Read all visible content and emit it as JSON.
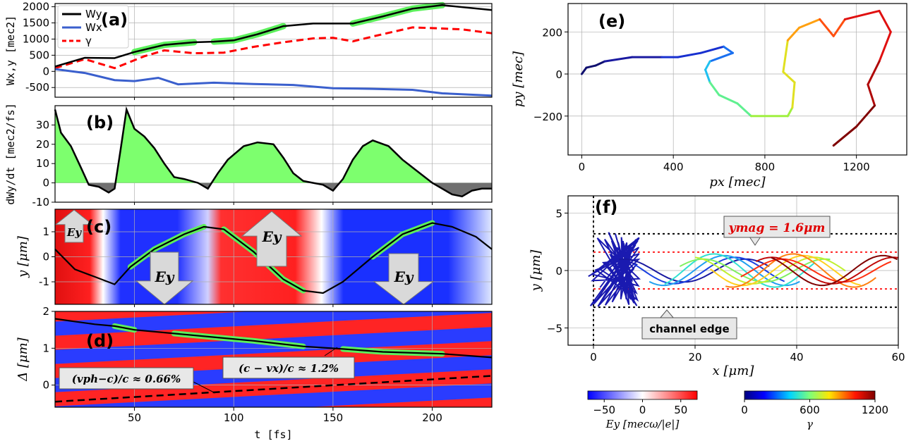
{
  "chart_data": [
    {
      "id": "a",
      "type": "line",
      "panel_label": "(a)",
      "ylabel": "Wx,y [mec2]",
      "ylim": [
        -800,
        2100
      ],
      "yticks": [
        "2000",
        "1500",
        "1000",
        "500",
        "0",
        "-500"
      ],
      "legend": [
        "Wy",
        "Wx",
        "γ"
      ],
      "series": [
        {
          "name": "Wy",
          "color": "#000000",
          "points": [
            [
              10,
              150
            ],
            [
              25,
              420
            ],
            [
              40,
              410
            ],
            [
              50,
              600
            ],
            [
              65,
              820
            ],
            [
              80,
              900
            ],
            [
              90,
              920
            ],
            [
              100,
              960
            ],
            [
              112,
              1150
            ],
            [
              125,
              1400
            ],
            [
              140,
              1480
            ],
            [
              160,
              1480
            ],
            [
              175,
              1700
            ],
            [
              190,
              1940
            ],
            [
              205,
              2050
            ],
            [
              230,
              1900
            ]
          ]
        },
        {
          "name": "Wx",
          "color": "#3a5fcd",
          "points": [
            [
              10,
              70
            ],
            [
              25,
              -50
            ],
            [
              40,
              -270
            ],
            [
              50,
              -300
            ],
            [
              62,
              -200
            ],
            [
              72,
              -400
            ],
            [
              90,
              -350
            ],
            [
              110,
              -390
            ],
            [
              130,
              -420
            ],
            [
              150,
              -520
            ],
            [
              170,
              -540
            ],
            [
              190,
              -570
            ],
            [
              205,
              -680
            ],
            [
              230,
              -750
            ]
          ]
        },
        {
          "name": "γ",
          "color": "#ff0000",
          "points": [
            [
              10,
              100
            ],
            [
              25,
              380
            ],
            [
              40,
              100
            ],
            [
              55,
              470
            ],
            [
              65,
              650
            ],
            [
              80,
              560
            ],
            [
              95,
              580
            ],
            [
              110,
              760
            ],
            [
              125,
              900
            ],
            [
              140,
              1020
            ],
            [
              150,
              1040
            ],
            [
              160,
              930
            ],
            [
              170,
              1080
            ],
            [
              190,
              1360
            ],
            [
              200,
              1340
            ],
            [
              215,
              1300
            ],
            [
              230,
              1180
            ]
          ]
        }
      ]
    },
    {
      "id": "b",
      "type": "area",
      "panel_label": "(b)",
      "ylabel": "dWy/dt [mec2/fs]",
      "ylim": [
        -10,
        40
      ],
      "yticks": [
        "30",
        "20",
        "10",
        "0",
        "-10"
      ],
      "series": [
        {
          "name": "dWy/dt",
          "points": [
            [
              10,
              38
            ],
            [
              13,
              26
            ],
            [
              18,
              19
            ],
            [
              23,
              8
            ],
            [
              27,
              -1
            ],
            [
              32,
              -2
            ],
            [
              37,
              -5
            ],
            [
              40,
              -3
            ],
            [
              43,
              17
            ],
            [
              46,
              38
            ],
            [
              50,
              28
            ],
            [
              55,
              24
            ],
            [
              60,
              18
            ],
            [
              65,
              10
            ],
            [
              70,
              3
            ],
            [
              75,
              2
            ],
            [
              82,
              0
            ],
            [
              87,
              -3
            ],
            [
              92,
              5
            ],
            [
              97,
              12
            ],
            [
              105,
              19
            ],
            [
              112,
              21
            ],
            [
              120,
              20
            ],
            [
              125,
              13
            ],
            [
              130,
              5
            ],
            [
              135,
              1
            ],
            [
              140,
              0
            ],
            [
              145,
              -1
            ],
            [
              150,
              -4
            ],
            [
              155,
              2
            ],
            [
              160,
              12
            ],
            [
              165,
              19
            ],
            [
              170,
              22
            ],
            [
              178,
              19
            ],
            [
              185,
              12
            ],
            [
              195,
              4
            ],
            [
              200,
              0
            ],
            [
              205,
              -3
            ],
            [
              210,
              -6
            ],
            [
              215,
              -7
            ],
            [
              220,
              -4
            ],
            [
              225,
              -3
            ],
            [
              230,
              -3
            ]
          ]
        }
      ]
    },
    {
      "id": "c",
      "type": "line",
      "panel_label": "(c)",
      "ylabel": "y [μm]",
      "ylim": [
        -1.9,
        1.9
      ],
      "yticks": [
        "1",
        "0",
        "-1"
      ],
      "series": [
        {
          "name": "y",
          "points": [
            [
              10,
              0.3
            ],
            [
              20,
              -0.5
            ],
            [
              30,
              -0.8
            ],
            [
              40,
              -1.1
            ],
            [
              48,
              -0.4
            ],
            [
              60,
              0.3
            ],
            [
              75,
              0.9
            ],
            [
              85,
              1.2
            ],
            [
              95,
              1.1
            ],
            [
              110,
              0.2
            ],
            [
              125,
              -0.9
            ],
            [
              135,
              -1.35
            ],
            [
              145,
              -1.45
            ],
            [
              155,
              -1.0
            ],
            [
              170,
              0.0
            ],
            [
              185,
              0.9
            ],
            [
              200,
              1.35
            ],
            [
              210,
              1.2
            ],
            [
              222,
              0.8
            ],
            [
              230,
              0.3
            ]
          ]
        }
      ],
      "annotations": [
        "Ey",
        "Ey",
        "Ey",
        "Ey"
      ]
    },
    {
      "id": "d",
      "type": "line",
      "panel_label": "(d)",
      "ylabel": "Δ [μm]",
      "ylim": [
        -0.6,
        2.0
      ],
      "yticks": [
        "2",
        "1",
        "0"
      ],
      "series": [
        {
          "name": "Δ",
          "points": [
            [
              10,
              1.8
            ],
            [
              30,
              1.65
            ],
            [
              40,
              1.6
            ],
            [
              50,
              1.5
            ],
            [
              70,
              1.4
            ],
            [
              90,
              1.3
            ],
            [
              110,
              1.2
            ],
            [
              135,
              1.05
            ],
            [
              155,
              0.98
            ],
            [
              175,
              0.9
            ],
            [
              205,
              0.85
            ],
            [
              230,
              0.75
            ]
          ]
        },
        {
          "name": "phase",
          "points": [
            [
              10,
              -0.45
            ],
            [
              230,
              0.25
            ]
          ]
        }
      ],
      "annotations": [
        "(vph−c)/c ≈ 0.66%",
        "(c − vx)/c ≈ 1.2%"
      ]
    },
    {
      "id": "e",
      "type": "line",
      "panel_label": "(e)",
      "xlabel": "px [mec]",
      "ylabel": "py [mec]",
      "xlim": [
        -60,
        1420
      ],
      "ylim": [
        -385,
        335
      ],
      "xticks": [
        "0",
        "400",
        "800",
        "1200"
      ],
      "yticks": [
        "200",
        "0",
        "−200"
      ],
      "series": [
        {
          "name": "trajectory",
          "points": [
            [
              0,
              0
            ],
            [
              20,
              30
            ],
            [
              60,
              40
            ],
            [
              100,
              60
            ],
            [
              220,
              80
            ],
            [
              350,
              80
            ],
            [
              420,
              80
            ],
            [
              520,
              100
            ],
            [
              620,
              130
            ],
            [
              660,
              100
            ],
            [
              560,
              60
            ],
            [
              540,
              20
            ],
            [
              560,
              -40
            ],
            [
              600,
              -100
            ],
            [
              680,
              -140
            ],
            [
              740,
              -200
            ],
            [
              900,
              -200
            ],
            [
              920,
              -160
            ],
            [
              930,
              -40
            ],
            [
              880,
              10
            ],
            [
              900,
              160
            ],
            [
              950,
              220
            ],
            [
              1040,
              260
            ],
            [
              1100,
              180
            ],
            [
              1150,
              260
            ],
            [
              1300,
              300
            ],
            [
              1350,
              200
            ],
            [
              1300,
              60
            ],
            [
              1250,
              -50
            ],
            [
              1280,
              -150
            ],
            [
              1200,
              -250
            ],
            [
              1100,
              -340
            ]
          ]
        }
      ]
    },
    {
      "id": "f",
      "type": "line",
      "panel_label": "(f)",
      "xlabel": "x [μm]",
      "ylabel": "y [μm]",
      "xlim": [
        -5,
        60
      ],
      "ylim": [
        -6.5,
        6.5
      ],
      "xticks": [
        "0",
        "20",
        "40",
        "60"
      ],
      "yticks": [
        "5",
        "0",
        "−5"
      ],
      "annotations": [
        "ymag = 1.6μm",
        "channel edge"
      ]
    }
  ],
  "shared_x_axis": {
    "label": "t [fs]",
    "ticks": [
      "50",
      "100",
      "150",
      "200"
    ],
    "xlim": [
      10,
      230
    ]
  },
  "colorbars": [
    {
      "label": "Ey [mecω/|e|]",
      "ticks": [
        "−50",
        "0",
        "50"
      ]
    },
    {
      "label": "γ",
      "ticks": [
        "0",
        "600",
        "1200"
      ]
    }
  ]
}
